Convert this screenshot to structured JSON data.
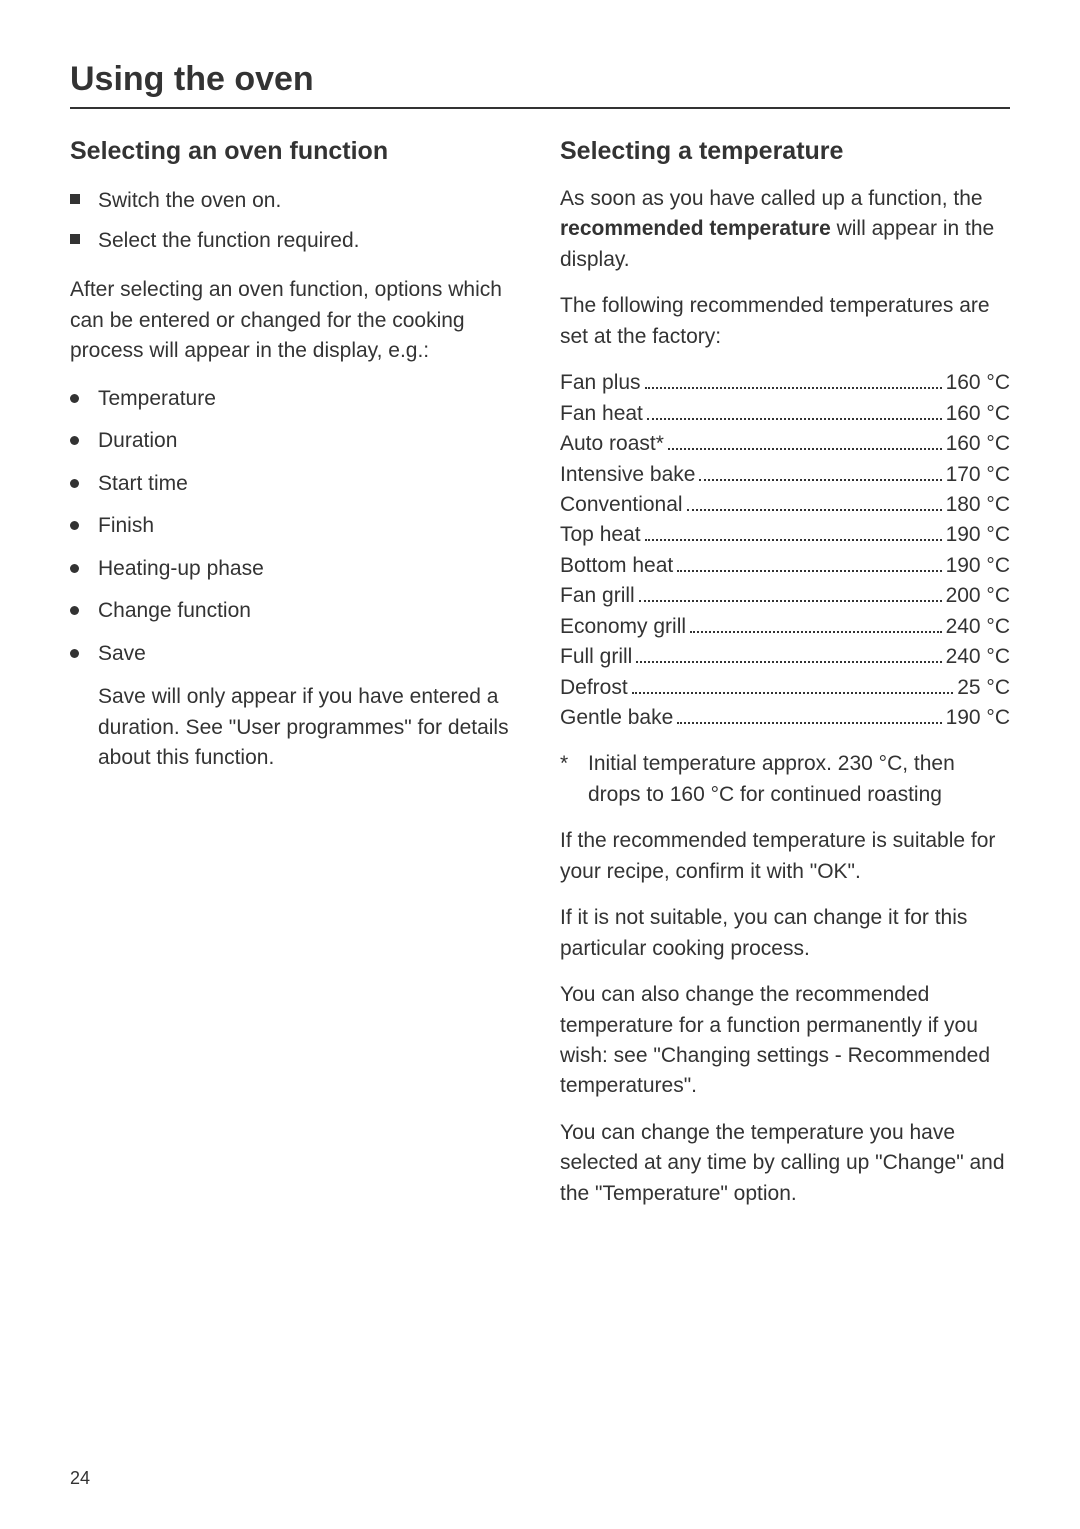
{
  "page_title": "Using the oven",
  "page_number": "24",
  "left": {
    "heading": "Selecting an oven function",
    "steps": [
      "Switch the oven on.",
      "Select the function required."
    ],
    "intro": "After selecting an oven function, options which can be entered or changed for the cooking process will appear in the display, e.g.:",
    "options": [
      "Temperature",
      "Duration",
      "Start time",
      "Finish",
      "Heating-up phase",
      "Change function",
      "Save"
    ],
    "save_note": "Save will only appear if you have entered a duration. See \"User programmes\" for details about this function."
  },
  "right": {
    "heading": "Selecting a temperature",
    "intro_1": "As soon as you have called up a function, the ",
    "intro_bold": "recommended temperature",
    "intro_2": " will appear in the display.",
    "factory_text": "The following recommended temperatures are set at the factory:",
    "temps": [
      {
        "label": "Fan plus",
        "value": "160 °C"
      },
      {
        "label": "Fan heat",
        "value": "160 °C"
      },
      {
        "label": "Auto roast*",
        "value": "160 °C"
      },
      {
        "label": "Intensive bake",
        "value": "170 °C"
      },
      {
        "label": "Conventional",
        "value": "180 °C"
      },
      {
        "label": "Top heat",
        "value": "190 °C"
      },
      {
        "label": "Bottom heat",
        "value": "190 °C"
      },
      {
        "label": "Fan grill",
        "value": "200 °C"
      },
      {
        "label": "Economy grill",
        "value": "240 °C"
      },
      {
        "label": "Full grill",
        "value": "240 °C"
      },
      {
        "label": "Defrost",
        "value": "25 °C"
      },
      {
        "label": "Gentle bake",
        "value": "190 °C"
      }
    ],
    "asterisk": "Initial temperature approx. 230 °C, then drops to 160 °C for continued roasting",
    "para1": "If the recommended temperature is suitable for your recipe, confirm it with \"OK\".",
    "para2": "If it is not suitable, you can change it for this particular cooking process.",
    "para3": "You can also change the recommended temperature for a function permanently if you wish: see \"Changing settings - Recommended temperatures\".",
    "para4": "You can change the temperature you have selected at any time by calling up \"Change\" and the \"Temperature\" option."
  }
}
